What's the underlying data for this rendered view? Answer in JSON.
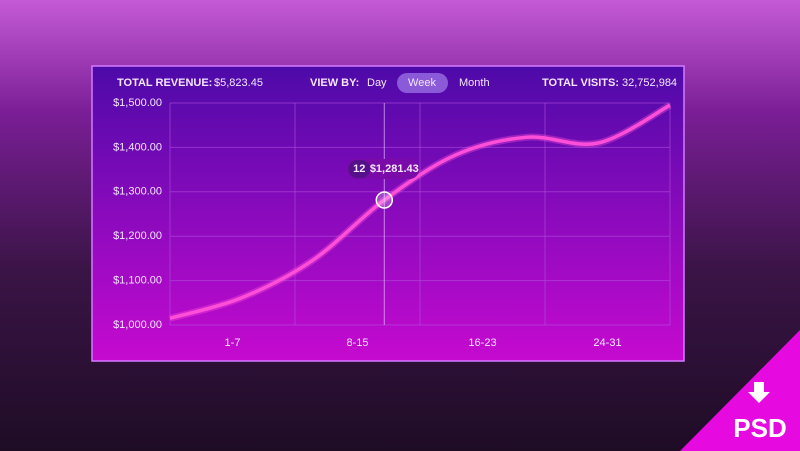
{
  "header": {
    "revenue_label": "TOTAL REVENUE:",
    "revenue_value": "$5,823.45",
    "view_by_label": "VIEW BY:",
    "view_options": [
      "Day",
      "Week",
      "Month"
    ],
    "visits_label": "TOTAL VISITS:",
    "visits_value": "32,752,984"
  },
  "badge": "PSD",
  "chart_data": {
    "type": "line",
    "categories": [
      "1-7",
      "8-15",
      "16-23",
      "24-31"
    ],
    "x": [
      0,
      4,
      8,
      12,
      16,
      20,
      24,
      28
    ],
    "xlim": [
      0,
      28
    ],
    "series": [
      {
        "color": "#ff4fd8",
        "values": [
          1015,
          1061,
          1146,
          1281.43,
          1383,
          1423,
          1410,
          1495
        ],
        "value_labels": [
          null,
          null,
          null,
          "$1,281.43",
          null,
          null,
          null,
          null
        ]
      }
    ],
    "ylim": [
      1000,
      1500
    ],
    "yticks": [
      {
        "value": 1000,
        "label": "$1,000.00"
      },
      {
        "value": 1100,
        "label": "$1,100.00"
      },
      {
        "value": 1200,
        "label": "$1,200.00"
      },
      {
        "value": 1300,
        "label": "$1,300.00"
      },
      {
        "value": 1400,
        "label": "$1,400.00"
      },
      {
        "value": 1500,
        "label": "$1,500.00"
      }
    ],
    "grid": true
  }
}
